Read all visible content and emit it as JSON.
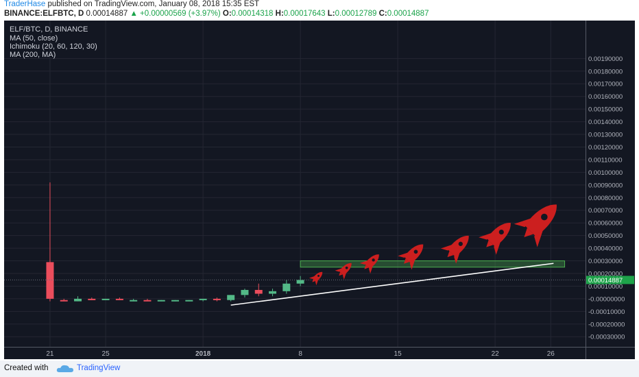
{
  "header": {
    "author": "TraderHase",
    "published_text": "published on TradingView.com, January 08, 2018 15:35 EST",
    "symbol": "BINANCE:ELFBTC, D",
    "price": "0.00014887",
    "change": "▲ +0.00000569 (+3.97%)",
    "o_label": "O:",
    "o_value": "0.00014318",
    "h_label": "H:",
    "h_value": "0.00017643",
    "l_label": "L:",
    "l_value": "0.00012789",
    "c_label": "C:",
    "c_value": "0.00014887"
  },
  "legend": {
    "title": "ELF/BTC, D, BINANCE",
    "studies": [
      "MA (50, close)",
      "Ichimoku (20, 60, 120, 30)",
      "MA (200, MA)"
    ]
  },
  "footer": {
    "created": "Created with",
    "brand": "TradingView"
  },
  "colors": {
    "up": "#53b987",
    "down": "#eb4d5c",
    "background": "#131722",
    "grid": "#242733",
    "text": "#b2b5be",
    "accent_red": "#cc1f1f",
    "zone": "#2e7d32",
    "price_tag": "#1ea34a"
  },
  "chart_data": {
    "type": "candlestick",
    "symbol": "ELF/BTC",
    "interval": "D",
    "ylim": [
      -0.00038,
      0.0022
    ],
    "y_ticks": [
      0.0019,
      0.0018,
      0.0017,
      0.0016,
      0.0015,
      0.0014,
      0.0013,
      0.0012,
      0.0011,
      0.001,
      0.0009,
      0.0008,
      0.0007,
      0.0006,
      0.0005,
      0.0004,
      0.0003,
      0.0002,
      0.0001,
      0,
      -0.0001,
      -0.0002,
      -0.0003
    ],
    "y_tick_labels": [
      "0.00190000",
      "0.00180000",
      "0.00170000",
      "0.00160000",
      "0.00150000",
      "0.00140000",
      "0.00130000",
      "0.00120000",
      "0.00110000",
      "0.00100000",
      "0.00090000",
      "0.00080000",
      "0.00070000",
      "0.00060000",
      "0.00050000",
      "0.00040000",
      "0.00030000",
      "0.00020000",
      "0.00010000",
      "-0.00000000",
      "-0.00010000",
      "-0.00020000",
      "-0.00030000"
    ],
    "x_ticks": [
      {
        "label": "21",
        "day": 0
      },
      {
        "label": "25",
        "day": 4
      },
      {
        "label": "2018",
        "day": 11
      },
      {
        "label": "8",
        "day": 18
      },
      {
        "label": "15",
        "day": 25
      },
      {
        "label": "22",
        "day": 32
      },
      {
        "label": "26",
        "day": 36
      }
    ],
    "x_range_days": [
      -3.3,
      38.5
    ],
    "candles": [
      {
        "day": 0,
        "o": 0.00029,
        "h": 0.00092,
        "l": -2e-05,
        "c": 0.0
      },
      {
        "day": 1,
        "o": -1e-05,
        "h": 0.0,
        "l": -2e-05,
        "c": -2e-05
      },
      {
        "day": 2,
        "o": -2e-05,
        "h": 2e-05,
        "l": -2e-05,
        "c": 0.0
      },
      {
        "day": 3,
        "o": 0.0,
        "h": 1e-05,
        "l": -1e-05,
        "c": -1e-05
      },
      {
        "day": 4,
        "o": -1e-05,
        "h": 0.0,
        "l": -1e-05,
        "c": 0.0
      },
      {
        "day": 5,
        "o": 0.0,
        "h": 1e-05,
        "l": -1e-05,
        "c": -1e-05
      },
      {
        "day": 6,
        "o": -1e-05,
        "h": 0.0,
        "l": -2e-05,
        "c": -1e-05
      },
      {
        "day": 7,
        "o": -1e-05,
        "h": 0.0,
        "l": -2e-05,
        "c": -2e-05
      },
      {
        "day": 8,
        "o": -2e-05,
        "h": -1e-05,
        "l": -2e-05,
        "c": -1e-05
      },
      {
        "day": 9,
        "o": -2e-05,
        "h": -1e-05,
        "l": -2e-05,
        "c": -1e-05
      },
      {
        "day": 10,
        "o": -2e-05,
        "h": -1e-05,
        "l": -2e-05,
        "c": -1e-05
      },
      {
        "day": 11,
        "o": -1e-05,
        "h": 0.0,
        "l": -2e-05,
        "c": 0.0
      },
      {
        "day": 12,
        "o": 0.0,
        "h": 1e-05,
        "l": -2e-05,
        "c": -1e-05
      },
      {
        "day": 13,
        "o": -1e-05,
        "h": 3e-05,
        "l": -2e-05,
        "c": 3e-05
      },
      {
        "day": 14,
        "o": 3e-05,
        "h": 8e-05,
        "l": 1e-05,
        "c": 7e-05
      },
      {
        "day": 15,
        "o": 7e-05,
        "h": 0.00012,
        "l": 2e-05,
        "c": 4e-05
      },
      {
        "day": 16,
        "o": 4e-05,
        "h": 8e-05,
        "l": 2e-05,
        "c": 6e-05
      },
      {
        "day": 17,
        "o": 6e-05,
        "h": 0.00015,
        "l": 4e-05,
        "c": 0.00012
      },
      {
        "day": 18,
        "o": 0.00012,
        "h": 0.00018,
        "l": 0.0001,
        "c": 0.000149
      }
    ],
    "last_price": 0.00014887,
    "last_price_label": "0.00014887",
    "support_zone": {
      "day_start": 18,
      "day_end": 37,
      "low": 0.00025,
      "high": 0.0003
    },
    "trendline": {
      "x1": 13,
      "y1": -5e-05,
      "x2": 36.2,
      "y2": 0.00028
    },
    "rockets": [
      {
        "day": 19.2,
        "value": 0.00017,
        "scale": 0.5
      },
      {
        "day": 21.2,
        "value": 0.00023,
        "scale": 0.62
      },
      {
        "day": 23.1,
        "value": 0.00029,
        "scale": 0.72
      },
      {
        "day": 26.1,
        "value": 0.00035,
        "scale": 0.95
      },
      {
        "day": 29.3,
        "value": 0.00041,
        "scale": 1.05
      },
      {
        "day": 32.2,
        "value": 0.0005,
        "scale": 1.2
      },
      {
        "day": 35.2,
        "value": 0.00061,
        "scale": 1.6
      }
    ]
  }
}
